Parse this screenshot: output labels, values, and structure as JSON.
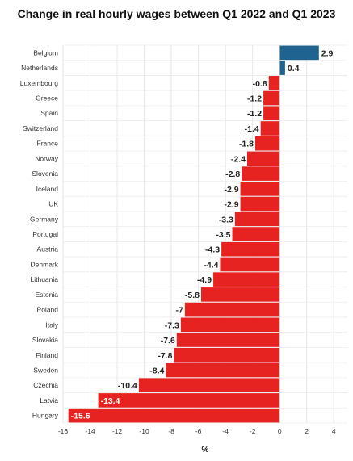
{
  "chart_data": {
    "type": "bar",
    "orientation": "horizontal",
    "title": "Change in real hourly wages between Q1 2022 and Q1 2023",
    "xlabel": "%",
    "ylabel": "",
    "xlim": [
      -16,
      5
    ],
    "xticks": [
      -16,
      -14,
      -12,
      -10,
      -8,
      -6,
      -4,
      -2,
      0,
      2,
      4
    ],
    "grid": true,
    "categories": [
      "Belgium",
      "Netherlands",
      "Luxembourg",
      "Greece",
      "Spain",
      "Switzerland",
      "France",
      "Norway",
      "Slovenia",
      "Iceland",
      "UK",
      "Germany",
      "Portugal",
      "Austria",
      "Denmark",
      "Lithuania",
      "Estonia",
      "Poland",
      "Italy",
      "Slovakia",
      "Finland",
      "Sweden",
      "Czechia",
      "Latvia",
      "Hungary"
    ],
    "values": [
      2.9,
      0.4,
      -0.8,
      -1.2,
      -1.2,
      -1.4,
      -1.8,
      -2.4,
      -2.8,
      -2.9,
      -2.9,
      -3.3,
      -3.5,
      -4.3,
      -4.4,
      -4.9,
      -5.8,
      -7,
      -7.3,
      -7.6,
      -7.8,
      -8.4,
      -10.4,
      -13.4,
      -15.6
    ],
    "colors": {
      "positive": "#1f6391",
      "negative": "#e62320",
      "label_outside": "#222222",
      "label_inside": "#ffffff"
    }
  }
}
